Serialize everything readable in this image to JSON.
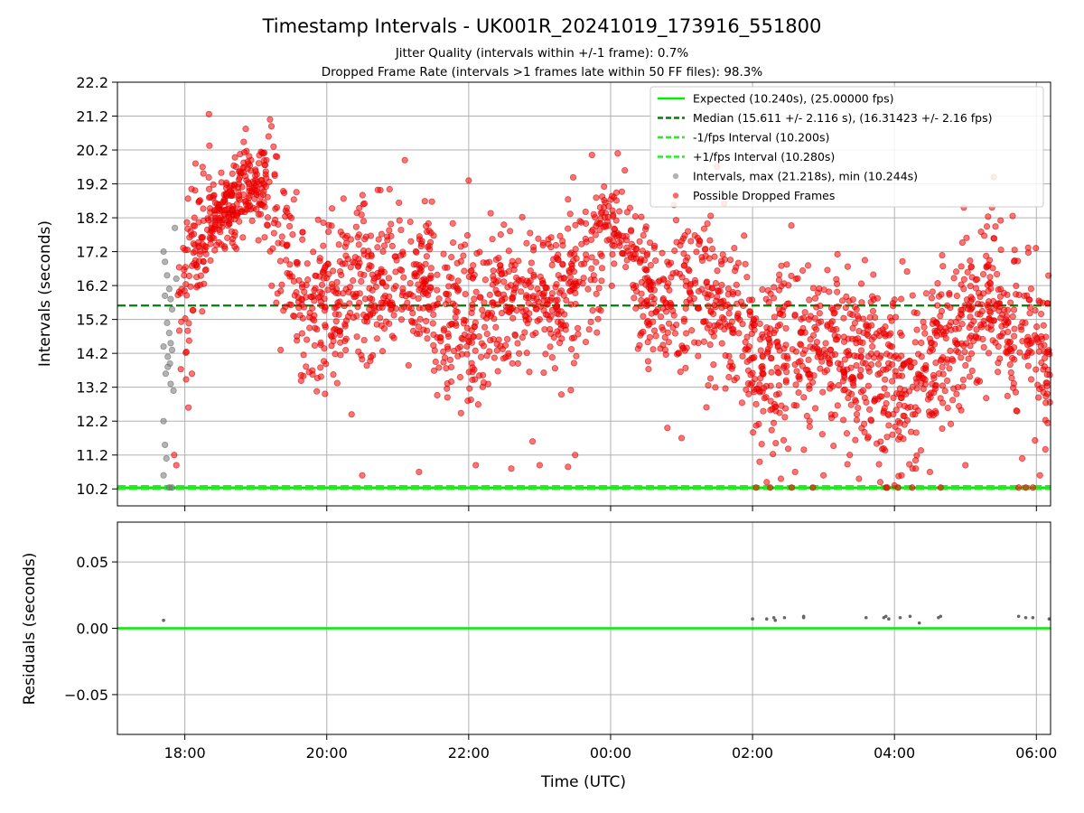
{
  "chart_data": [
    {
      "type": "scatter",
      "title": "Timestamp Intervals - UK001R_20241019_173916_551800",
      "subtitle_1": "Jitter Quality (intervals within +/-1 frame): 0.7%",
      "subtitle_2": "Dropped Frame Rate (intervals >1 frames late within 50 FF files): 98.3%",
      "ylabel": "Intervals (seconds)",
      "ylim": [
        9.7,
        22.2
      ],
      "yticks": [
        10.2,
        11.2,
        12.2,
        13.2,
        14.2,
        15.2,
        16.2,
        17.2,
        18.2,
        19.2,
        20.2,
        21.2,
        22.2
      ],
      "ytick_labels": [
        "10.2",
        "11.2",
        "12.2",
        "13.2",
        "14.2",
        "15.2",
        "16.2",
        "17.2",
        "18.2",
        "19.2",
        "20.2",
        "21.2",
        "22.2"
      ],
      "xlim_hours": [
        17.05,
        30.2
      ],
      "xticks_hours": [
        18,
        20,
        22,
        24,
        26,
        28,
        30
      ],
      "grid": true,
      "legend_position": "top-right",
      "reference_lines": {
        "expected": 10.24,
        "median": 15.611,
        "minus_1fps": 10.2,
        "plus_1fps": 10.28
      },
      "legend": [
        {
          "label": "Expected (10.240s), (25.00000 fps)",
          "style": "solid",
          "color": "#00ee00"
        },
        {
          "label": "Median (15.611 +/- 2.116 s), (16.31423 +/- 2.16 fps)",
          "style": "dashed",
          "color": "#008000"
        },
        {
          "label": "-1/fps Interval (10.200s)",
          "style": "dashed",
          "color": "#22ee22"
        },
        {
          "label": "+1/fps Interval (10.280s)",
          "style": "dashed",
          "color": "#22ee22"
        },
        {
          "label": "Intervals, max (21.218s), min (10.244s)",
          "style": "marker",
          "color": "#808080"
        },
        {
          "label": "Possible Dropped Frames",
          "style": "marker",
          "color": "#ff0000"
        }
      ],
      "gray_points": [
        [
          17.7,
          17.2
        ],
        [
          17.72,
          16.9
        ],
        [
          17.75,
          16.5
        ],
        [
          17.78,
          16.1
        ],
        [
          17.8,
          15.8
        ],
        [
          17.82,
          15.5
        ],
        [
          17.75,
          15.1
        ],
        [
          17.78,
          14.8
        ],
        [
          17.8,
          14.5
        ],
        [
          17.82,
          14.3
        ],
        [
          17.76,
          14.1
        ],
        [
          17.79,
          13.9
        ],
        [
          17.73,
          13.6
        ],
        [
          17.8,
          13.3
        ],
        [
          17.84,
          13.1
        ],
        [
          17.7,
          12.2
        ],
        [
          17.72,
          11.5
        ],
        [
          17.74,
          11.1
        ],
        [
          17.7,
          10.6
        ],
        [
          17.86,
          17.9
        ],
        [
          17.88,
          16.4
        ],
        [
          17.72,
          15.9
        ],
        [
          17.7,
          14.4
        ],
        [
          17.76,
          13.8
        ],
        [
          17.78,
          10.24
        ],
        [
          17.82,
          10.24
        ]
      ],
      "red_bands": [
        {
          "t0": 17.9,
          "t1": 18.35,
          "c0": 15.0,
          "c1": 18.8,
          "spread": 1.3,
          "n": 90
        },
        {
          "t0": 18.35,
          "t1": 18.7,
          "c0": 18.0,
          "c1": 18.7,
          "spread": 0.6,
          "n": 110
        },
        {
          "t0": 18.7,
          "t1": 19.15,
          "c0": 18.8,
          "c1": 19.4,
          "spread": 0.8,
          "n": 120
        },
        {
          "t0": 19.15,
          "t1": 19.6,
          "c0": 18.5,
          "c1": 16.5,
          "spread": 1.5,
          "n": 60
        },
        {
          "t0": 19.6,
          "t1": 20.2,
          "c0": 15.2,
          "c1": 15.8,
          "spread": 1.4,
          "n": 130
        },
        {
          "t0": 20.2,
          "t1": 21.5,
          "c0": 16.0,
          "c1": 16.6,
          "spread": 1.3,
          "n": 260
        },
        {
          "t0": 21.5,
          "t1": 22.3,
          "c0": 15.5,
          "c1": 15.0,
          "spread": 1.4,
          "n": 150
        },
        {
          "t0": 22.3,
          "t1": 23.3,
          "c0": 15.8,
          "c1": 16.0,
          "spread": 1.3,
          "n": 200
        },
        {
          "t0": 23.3,
          "t1": 23.9,
          "c0": 15.6,
          "c1": 17.5,
          "spread": 1.3,
          "n": 110
        },
        {
          "t0": 23.9,
          "t1": 24.3,
          "c0": 18.2,
          "c1": 17.2,
          "spread": 0.8,
          "n": 60
        },
        {
          "t0": 24.3,
          "t1": 25.2,
          "c0": 16.3,
          "c1": 16.0,
          "spread": 1.2,
          "n": 170
        },
        {
          "t0": 25.2,
          "t1": 26.0,
          "c0": 16.0,
          "c1": 14.5,
          "spread": 1.4,
          "n": 150
        },
        {
          "t0": 26.0,
          "t1": 26.8,
          "c0": 13.8,
          "c1": 14.6,
          "spread": 1.5,
          "n": 170
        },
        {
          "t0": 26.8,
          "t1": 27.6,
          "c0": 14.5,
          "c1": 14.0,
          "spread": 1.5,
          "n": 170
        },
        {
          "t0": 27.6,
          "t1": 28.4,
          "c0": 13.8,
          "c1": 13.2,
          "spread": 1.5,
          "n": 170
        },
        {
          "t0": 28.4,
          "t1": 29.2,
          "c0": 14.0,
          "c1": 15.5,
          "spread": 1.4,
          "n": 170
        },
        {
          "t0": 29.2,
          "t1": 30.2,
          "c0": 16.0,
          "c1": 14.0,
          "spread": 1.5,
          "n": 200
        }
      ],
      "red_points_extra": [
        [
          19.2,
          21.1
        ],
        [
          19.22,
          20.9
        ],
        [
          19.18,
          20.6
        ],
        [
          19.25,
          20.3
        ],
        [
          19.15,
          19.9
        ],
        [
          19.3,
          20.0
        ],
        [
          18.15,
          19.8
        ],
        [
          18.25,
          19.7
        ],
        [
          21.1,
          19.9
        ],
        [
          22.0,
          19.3
        ],
        [
          24.1,
          20.1
        ],
        [
          24.2,
          19.6
        ],
        [
          25.5,
          19.7
        ],
        [
          29.4,
          19.4
        ],
        [
          20.5,
          10.6
        ],
        [
          21.3,
          10.7
        ],
        [
          22.1,
          10.9
        ],
        [
          22.6,
          10.8
        ],
        [
          23.0,
          10.9
        ],
        [
          23.4,
          10.85
        ],
        [
          26.2,
          10.4
        ],
        [
          26.4,
          10.5
        ],
        [
          26.6,
          10.7
        ],
        [
          27.0,
          10.6
        ],
        [
          27.5,
          10.5
        ],
        [
          27.8,
          10.4
        ],
        [
          28.1,
          10.6
        ],
        [
          28.3,
          10.8
        ],
        [
          28.5,
          10.7
        ],
        [
          29.0,
          10.9
        ],
        [
          29.8,
          11.1
        ],
        [
          30.05,
          10.6
        ],
        [
          25.0,
          11.7
        ],
        [
          26.1,
          11.0
        ],
        [
          28.0,
          10.3
        ],
        [
          17.85,
          11.2
        ],
        [
          17.88,
          10.9
        ],
        [
          18.05,
          12.6
        ],
        [
          18.1,
          13.6
        ],
        [
          19.35,
          14.3
        ],
        [
          20.35,
          12.4
        ],
        [
          21.7,
          12.9
        ],
        [
          22.9,
          11.6
        ],
        [
          23.5,
          11.2
        ],
        [
          24.8,
          12.0
        ],
        [
          26.05,
          10.24
        ],
        [
          26.25,
          10.24
        ],
        [
          26.55,
          10.24
        ],
        [
          26.85,
          10.24
        ],
        [
          27.9,
          10.24
        ],
        [
          28.05,
          10.24
        ],
        [
          28.25,
          10.24
        ],
        [
          28.65,
          10.24
        ],
        [
          29.75,
          10.24
        ],
        [
          29.85,
          10.24
        ],
        [
          29.95,
          10.24
        ]
      ]
    },
    {
      "type": "scatter",
      "ylabel": "Residuals (seconds)",
      "xlabel": "Time (UTC)",
      "ylim": [
        -0.08,
        0.08
      ],
      "yticks": [
        -0.05,
        0.0,
        0.05
      ],
      "ytick_labels": [
        "−0.05",
        "0.00",
        "0.05"
      ],
      "xlim_hours": [
        17.05,
        30.2
      ],
      "xticks_hours": [
        18,
        20,
        22,
        24,
        26,
        28,
        30
      ],
      "xtick_labels": [
        "18:00",
        "20:00",
        "22:00",
        "00:00",
        "02:00",
        "04:00",
        "06:00"
      ],
      "grid": true,
      "zero_line": 0.0,
      "points": [
        [
          17.7,
          0.006
        ],
        [
          26.0,
          0.007
        ],
        [
          26.2,
          0.007
        ],
        [
          26.3,
          0.008
        ],
        [
          26.32,
          0.006
        ],
        [
          26.45,
          0.008
        ],
        [
          26.72,
          0.009
        ],
        [
          26.72,
          0.008
        ],
        [
          27.6,
          0.008
        ],
        [
          27.85,
          0.008
        ],
        [
          27.88,
          0.009
        ],
        [
          27.92,
          0.007
        ],
        [
          28.08,
          0.008
        ],
        [
          28.22,
          0.009
        ],
        [
          28.35,
          0.004
        ],
        [
          28.62,
          0.008
        ],
        [
          28.65,
          0.009
        ],
        [
          29.75,
          0.009
        ],
        [
          29.85,
          0.008
        ],
        [
          29.95,
          0.008
        ],
        [
          30.18,
          0.007
        ]
      ]
    }
  ]
}
